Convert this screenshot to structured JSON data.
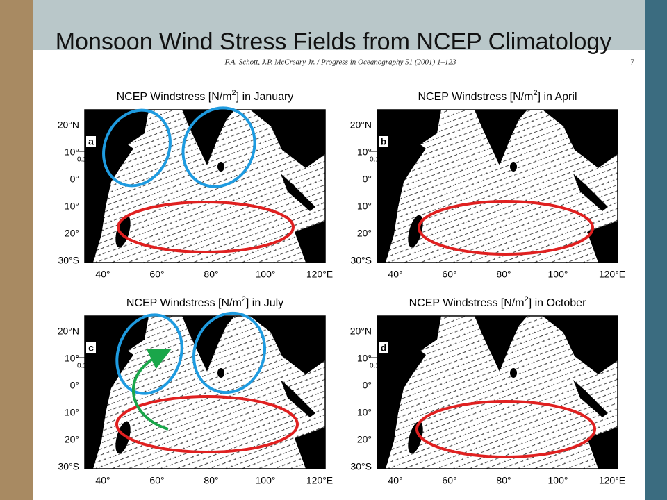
{
  "title": "Monsoon Wind Stress Fields from NCEP Climatology",
  "header": {
    "citation": "F.A. Schott, J.P. McCreary Jr. / Progress in Oceanography 51 (2001) 1–123",
    "page": "7"
  },
  "axes": {
    "lat_labels": [
      "20°N",
      "10°",
      "0°",
      "10°",
      "20°",
      "30°S"
    ],
    "lon_labels": [
      "40°",
      "60°",
      "80°",
      "100°",
      "120°E"
    ],
    "scale_label": "0.1"
  },
  "panels": [
    {
      "letter": "a",
      "title_start": "NCEP Windstress [N/m",
      "title_sup": "2",
      "title_end": "] in January"
    },
    {
      "letter": "b",
      "title_start": "NCEP Windstress [N/m",
      "title_sup": "2",
      "title_end": "] in April"
    },
    {
      "letter": "c",
      "title_start": "NCEP Windstress [N/m",
      "title_sup": "2",
      "title_end": "] in July"
    },
    {
      "letter": "d",
      "title_start": "NCEP Windstress [N/m",
      "title_sup": "2",
      "title_end": "] in October"
    }
  ]
}
